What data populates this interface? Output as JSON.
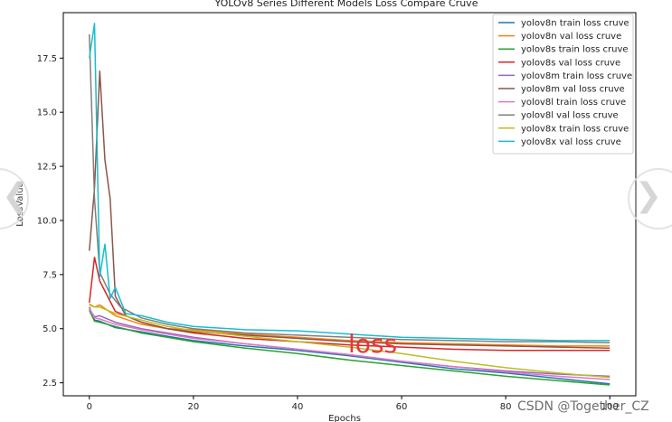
{
  "chart_data": {
    "type": "line",
    "title": "YOLOv8 Series Different Models Loss Compare Cruve",
    "xlabel": "Epochs",
    "ylabel": "LossValue",
    "xlim": [
      -5,
      105
    ],
    "ylim": [
      1.9,
      19.6
    ],
    "xticks": [
      0,
      20,
      40,
      60,
      80,
      100
    ],
    "yticks": [
      2.5,
      5.0,
      7.5,
      10.0,
      12.5,
      15.0,
      17.5
    ],
    "legend_position": "top-right",
    "series": [
      {
        "name": "yolov8n train loss cruve",
        "color": "#1f77b4",
        "points": [
          [
            0,
            6.0
          ],
          [
            1,
            5.4
          ],
          [
            2,
            5.35
          ],
          [
            5,
            5.05
          ],
          [
            10,
            4.85
          ],
          [
            15,
            4.65
          ],
          [
            20,
            4.45
          ],
          [
            30,
            4.2
          ],
          [
            40,
            4.0
          ],
          [
            50,
            3.75
          ],
          [
            60,
            3.45
          ],
          [
            70,
            3.15
          ],
          [
            80,
            2.95
          ],
          [
            90,
            2.7
          ],
          [
            100,
            2.45
          ]
        ]
      },
      {
        "name": "yolov8n val loss cruve",
        "color": "#ff7f0e",
        "points": [
          [
            0,
            6.1
          ],
          [
            1,
            6.0
          ],
          [
            2,
            6.1
          ],
          [
            5,
            5.6
          ],
          [
            10,
            5.2
          ],
          [
            15,
            5.0
          ],
          [
            20,
            4.95
          ],
          [
            30,
            4.75
          ],
          [
            40,
            4.6
          ],
          [
            50,
            4.45
          ],
          [
            60,
            4.35
          ],
          [
            70,
            4.3
          ],
          [
            80,
            4.25
          ],
          [
            90,
            4.2
          ],
          [
            100,
            4.2
          ]
        ]
      },
      {
        "name": "yolov8s train loss cruve",
        "color": "#2ca02c",
        "points": [
          [
            0,
            5.85
          ],
          [
            1,
            5.35
          ],
          [
            2,
            5.3
          ],
          [
            5,
            5.1
          ],
          [
            10,
            4.8
          ],
          [
            15,
            4.6
          ],
          [
            20,
            4.4
          ],
          [
            30,
            4.1
          ],
          [
            40,
            3.85
          ],
          [
            50,
            3.55
          ],
          [
            60,
            3.3
          ],
          [
            70,
            3.05
          ],
          [
            80,
            2.8
          ],
          [
            90,
            2.6
          ],
          [
            100,
            2.4
          ]
        ]
      },
      {
        "name": "yolov8s val loss cruve",
        "color": "#d62728",
        "points": [
          [
            0,
            6.2
          ],
          [
            1,
            8.3
          ],
          [
            2,
            7.2
          ],
          [
            5,
            5.8
          ],
          [
            10,
            5.3
          ],
          [
            15,
            5.0
          ],
          [
            20,
            4.8
          ],
          [
            30,
            4.55
          ],
          [
            40,
            4.4
          ],
          [
            50,
            4.25
          ],
          [
            60,
            4.15
          ],
          [
            70,
            4.05
          ],
          [
            80,
            4.0
          ],
          [
            90,
            4.0
          ],
          [
            100,
            4.0
          ]
        ]
      },
      {
        "name": "yolov8m train loss cruve",
        "color": "#9467bd",
        "points": [
          [
            0,
            5.9
          ],
          [
            1,
            5.55
          ],
          [
            2,
            5.6
          ],
          [
            5,
            5.3
          ],
          [
            10,
            5.0
          ],
          [
            15,
            4.8
          ],
          [
            20,
            4.6
          ],
          [
            30,
            4.3
          ],
          [
            40,
            4.05
          ],
          [
            50,
            3.8
          ],
          [
            60,
            3.5
          ],
          [
            70,
            3.25
          ],
          [
            80,
            3.05
          ],
          [
            90,
            2.9
          ],
          [
            100,
            2.8
          ]
        ]
      },
      {
        "name": "yolov8m val loss cruve",
        "color": "#8c564b",
        "points": [
          [
            0,
            8.6
          ],
          [
            1,
            11.5
          ],
          [
            2,
            16.9
          ],
          [
            3,
            12.8
          ],
          [
            4,
            11.0
          ],
          [
            5,
            6.5
          ],
          [
            7,
            5.6
          ],
          [
            10,
            5.3
          ],
          [
            15,
            5.0
          ],
          [
            20,
            4.85
          ],
          [
            30,
            4.7
          ],
          [
            40,
            4.55
          ],
          [
            50,
            4.4
          ],
          [
            60,
            4.3
          ],
          [
            70,
            4.25
          ],
          [
            80,
            4.2
          ],
          [
            90,
            4.15
          ],
          [
            100,
            4.1
          ]
        ]
      },
      {
        "name": "yolov8l train loss cruve",
        "color": "#e377c2",
        "points": [
          [
            0,
            5.95
          ],
          [
            1,
            5.5
          ],
          [
            2,
            5.45
          ],
          [
            5,
            5.2
          ],
          [
            10,
            4.95
          ],
          [
            15,
            4.75
          ],
          [
            20,
            4.55
          ],
          [
            30,
            4.3
          ],
          [
            40,
            4.05
          ],
          [
            50,
            3.8
          ],
          [
            60,
            3.5
          ],
          [
            70,
            3.25
          ],
          [
            80,
            3.0
          ],
          [
            90,
            2.8
          ],
          [
            100,
            2.65
          ]
        ]
      },
      {
        "name": "yolov8l val loss cruve",
        "color": "#7f7f7f",
        "points": [
          [
            0,
            18.6
          ],
          [
            1,
            11.0
          ],
          [
            2,
            7.6
          ],
          [
            4,
            6.6
          ],
          [
            6,
            6.0
          ],
          [
            10,
            5.5
          ],
          [
            15,
            5.2
          ],
          [
            20,
            5.0
          ],
          [
            30,
            4.8
          ],
          [
            40,
            4.7
          ],
          [
            50,
            4.6
          ],
          [
            60,
            4.5
          ],
          [
            70,
            4.45
          ],
          [
            80,
            4.4
          ],
          [
            90,
            4.4
          ],
          [
            100,
            4.35
          ]
        ]
      },
      {
        "name": "yolov8x train loss cruve",
        "color": "#bcbd22",
        "points": [
          [
            0,
            6.15
          ],
          [
            1,
            6.0
          ],
          [
            2,
            6.0
          ],
          [
            5,
            5.7
          ],
          [
            10,
            5.4
          ],
          [
            15,
            5.1
          ],
          [
            20,
            4.9
          ],
          [
            30,
            4.65
          ],
          [
            40,
            4.4
          ],
          [
            50,
            4.15
          ],
          [
            60,
            3.85
          ],
          [
            70,
            3.5
          ],
          [
            80,
            3.2
          ],
          [
            90,
            2.95
          ],
          [
            100,
            2.75
          ]
        ]
      },
      {
        "name": "yolov8x val loss cruve",
        "color": "#17becf",
        "points": [
          [
            0,
            17.5
          ],
          [
            1,
            19.1
          ],
          [
            2,
            7.4
          ],
          [
            3,
            8.9
          ],
          [
            4,
            6.4
          ],
          [
            5,
            6.9
          ],
          [
            7,
            5.7
          ],
          [
            10,
            5.6
          ],
          [
            15,
            5.3
          ],
          [
            20,
            5.1
          ],
          [
            30,
            4.95
          ],
          [
            40,
            4.9
          ],
          [
            50,
            4.75
          ],
          [
            60,
            4.6
          ],
          [
            70,
            4.55
          ],
          [
            80,
            4.5
          ],
          [
            90,
            4.45
          ],
          [
            100,
            4.45
          ]
        ]
      }
    ]
  },
  "overlay": {
    "word": "loss",
    "watermark": "CSDN @Together_CZ"
  },
  "nav": {
    "prev_glyph": "❮",
    "next_glyph": "❯"
  }
}
